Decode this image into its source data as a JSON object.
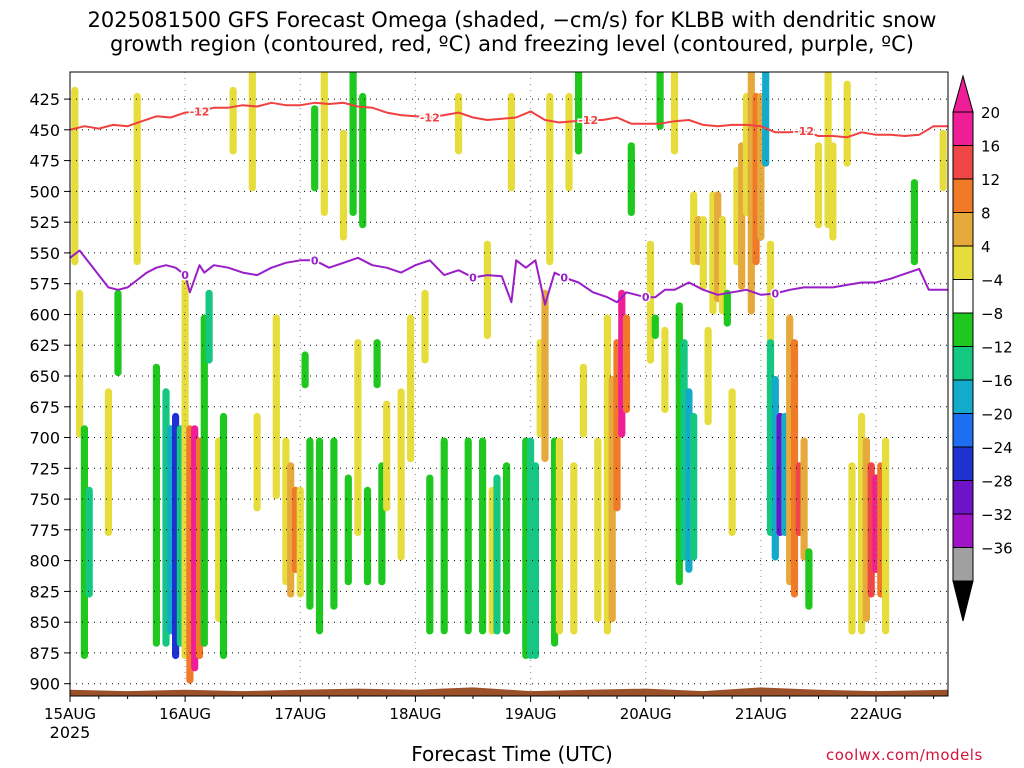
{
  "colors": {
    "dgz_contour": "#f04040",
    "freezing_contour": "#9a1ec8",
    "terrain": "#9a5028",
    "credit": "#d2143c"
  },
  "chart_data": {
    "type": "heatmap",
    "title": "2025081500 GFS Forecast Omega (shaded, −cm/s) for KLBB with dendritic snow",
    "subtitle": "growth region (contoured, red, ºC) and freezing level (contoured, purple, ºC)",
    "xlabel": "Forecast Time (UTC)",
    "year_label": "2025",
    "x_ticks": [
      "15AUG",
      "16AUG",
      "17AUG",
      "18AUG",
      "19AUG",
      "20AUG",
      "21AUG",
      "22AUG"
    ],
    "xlim_hours": [
      0,
      183
    ],
    "y_ticks": [
      425,
      450,
      475,
      500,
      525,
      550,
      575,
      600,
      625,
      650,
      675,
      700,
      725,
      750,
      775,
      800,
      825,
      850,
      875,
      900
    ],
    "ylim_mb": [
      910,
      403
    ],
    "grid": true,
    "colorbar": {
      "labels": [
        "20",
        "16",
        "12",
        "8",
        "4",
        "−4",
        "−8",
        "−12",
        "−16",
        "−20",
        "−24",
        "−28",
        "−32",
        "−36"
      ],
      "colors": [
        "#f01e96",
        "#f04646",
        "#f07a28",
        "#e6aa3c",
        "#e6dc3c",
        "#ffffff",
        "#1ec81e",
        "#14c882",
        "#14aacc",
        "#1e6ef0",
        "#1e32d2",
        "#6e14c8",
        "#a014c8",
        "#a0a0a0"
      ]
    },
    "contour_labels": {
      "dgz": "-12",
      "freezing": "0"
    },
    "dgz_level_mb": [
      [
        0,
        450
      ],
      [
        3,
        447
      ],
      [
        6,
        449
      ],
      [
        9,
        446
      ],
      [
        12,
        447
      ],
      [
        15,
        443
      ],
      [
        18,
        439
      ],
      [
        21,
        440
      ],
      [
        24,
        436
      ],
      [
        27,
        435
      ],
      [
        30,
        432
      ],
      [
        33,
        432
      ],
      [
        36,
        430
      ],
      [
        39,
        431
      ],
      [
        42,
        428
      ],
      [
        45,
        430
      ],
      [
        48,
        430
      ],
      [
        51,
        428
      ],
      [
        54,
        429
      ],
      [
        57,
        428
      ],
      [
        60,
        431
      ],
      [
        63,
        432
      ],
      [
        66,
        436
      ],
      [
        69,
        438
      ],
      [
        72,
        439
      ],
      [
        75,
        440
      ],
      [
        78,
        438
      ],
      [
        81,
        436
      ],
      [
        84,
        440
      ],
      [
        87,
        442
      ],
      [
        90,
        441
      ],
      [
        93,
        440
      ],
      [
        96,
        435
      ],
      [
        99,
        442
      ],
      [
        102,
        444
      ],
      [
        105,
        443
      ],
      [
        108,
        442
      ],
      [
        111,
        442
      ],
      [
        114,
        440
      ],
      [
        117,
        445
      ],
      [
        120,
        445
      ],
      [
        123,
        445
      ],
      [
        126,
        443
      ],
      [
        129,
        442
      ],
      [
        132,
        446
      ],
      [
        135,
        447
      ],
      [
        138,
        446
      ],
      [
        141,
        446
      ],
      [
        144,
        447
      ],
      [
        147,
        452
      ],
      [
        150,
        452
      ],
      [
        153,
        451
      ],
      [
        156,
        455
      ],
      [
        159,
        455
      ],
      [
        162,
        456
      ],
      [
        165,
        452
      ],
      [
        168,
        454
      ],
      [
        171,
        454
      ],
      [
        174,
        455
      ],
      [
        177,
        454
      ],
      [
        180,
        447
      ],
      [
        183,
        447
      ]
    ],
    "freezing_level_mb": [
      [
        0,
        554
      ],
      [
        2,
        548
      ],
      [
        4,
        558
      ],
      [
        6,
        568
      ],
      [
        8,
        578
      ],
      [
        10,
        580
      ],
      [
        12,
        578
      ],
      [
        14,
        572
      ],
      [
        16,
        566
      ],
      [
        18,
        562
      ],
      [
        20,
        560
      ],
      [
        22,
        562
      ],
      [
        24,
        568
      ],
      [
        25,
        582
      ],
      [
        27,
        560
      ],
      [
        28,
        566
      ],
      [
        30,
        560
      ],
      [
        33,
        562
      ],
      [
        36,
        566
      ],
      [
        39,
        568
      ],
      [
        42,
        562
      ],
      [
        45,
        558
      ],
      [
        48,
        556
      ],
      [
        51,
        556
      ],
      [
        54,
        562
      ],
      [
        57,
        558
      ],
      [
        60,
        554
      ],
      [
        63,
        560
      ],
      [
        66,
        562
      ],
      [
        69,
        566
      ],
      [
        72,
        560
      ],
      [
        75,
        556
      ],
      [
        78,
        568
      ],
      [
        81,
        564
      ],
      [
        84,
        570
      ],
      [
        87,
        568
      ],
      [
        90,
        569
      ],
      [
        92,
        590
      ],
      [
        93,
        556
      ],
      [
        95,
        562
      ],
      [
        97,
        556
      ],
      [
        99,
        592
      ],
      [
        101,
        566
      ],
      [
        103,
        570
      ],
      [
        106,
        574
      ],
      [
        109,
        582
      ],
      [
        112,
        586
      ],
      [
        114,
        590
      ],
      [
        116,
        582
      ],
      [
        118,
        584
      ],
      [
        120,
        586
      ],
      [
        122,
        586
      ],
      [
        124,
        580
      ],
      [
        126,
        580
      ],
      [
        129,
        574
      ],
      [
        132,
        580
      ],
      [
        135,
        584
      ],
      [
        138,
        582
      ],
      [
        141,
        580
      ],
      [
        144,
        584
      ],
      [
        147,
        583
      ],
      [
        150,
        580
      ],
      [
        153,
        578
      ],
      [
        156,
        578
      ],
      [
        159,
        578
      ],
      [
        162,
        576
      ],
      [
        165,
        574
      ],
      [
        168,
        574
      ],
      [
        171,
        571
      ],
      [
        174,
        567
      ],
      [
        177,
        563
      ],
      [
        179,
        580
      ],
      [
        183,
        580
      ]
    ],
    "terrain_surface_mb": [
      [
        0,
        905
      ],
      [
        12,
        906
      ],
      [
        24,
        905
      ],
      [
        36,
        906
      ],
      [
        48,
        905
      ],
      [
        60,
        904
      ],
      [
        72,
        905
      ],
      [
        84,
        903
      ],
      [
        96,
        906
      ],
      [
        108,
        905
      ],
      [
        120,
        904
      ],
      [
        132,
        906
      ],
      [
        144,
        903
      ],
      [
        156,
        905
      ],
      [
        168,
        906
      ],
      [
        183,
        905
      ]
    ],
    "omega_cells": [
      {
        "t": 1,
        "p0": 415,
        "p1": 560,
        "v": 4
      },
      {
        "t": 2,
        "p0": 580,
        "p1": 700,
        "v": 4
      },
      {
        "t": 3,
        "p0": 690,
        "p1": 880,
        "v": -6
      },
      {
        "t": 4,
        "p0": 740,
        "p1": 830,
        "v": -10
      },
      {
        "t": 8,
        "p0": 660,
        "p1": 780,
        "v": 4
      },
      {
        "t": 10,
        "p0": 580,
        "p1": 650,
        "v": -6
      },
      {
        "t": 14,
        "p0": 420,
        "p1": 560,
        "v": 4
      },
      {
        "t": 18,
        "p0": 640,
        "p1": 870,
        "v": -6
      },
      {
        "t": 20,
        "p0": 660,
        "p1": 870,
        "v": -8
      },
      {
        "t": 21,
        "p0": 690,
        "p1": 860,
        "v": -14
      },
      {
        "t": 22,
        "p0": 680,
        "p1": 880,
        "v": -20
      },
      {
        "t": 23,
        "p0": 690,
        "p1": 870,
        "v": -10
      },
      {
        "t": 24,
        "p0": 570,
        "p1": 880,
        "v": 6
      },
      {
        "t": 25,
        "p0": 690,
        "p1": 900,
        "v": 14
      },
      {
        "t": 26,
        "p0": 690,
        "p1": 890,
        "v": 22
      },
      {
        "t": 27,
        "p0": 700,
        "p1": 880,
        "v": 14
      },
      {
        "t": 28,
        "p0": 600,
        "p1": 870,
        "v": -6
      },
      {
        "t": 29,
        "p0": 580,
        "p1": 640,
        "v": -10
      },
      {
        "t": 31,
        "p0": 700,
        "p1": 850,
        "v": 4
      },
      {
        "t": 32,
        "p0": 680,
        "p1": 880,
        "v": -6
      },
      {
        "t": 34,
        "p0": 415,
        "p1": 470,
        "v": 4
      },
      {
        "t": 38,
        "p0": 400,
        "p1": 500,
        "v": 4
      },
      {
        "t": 39,
        "p0": 680,
        "p1": 760,
        "v": 4
      },
      {
        "t": 43,
        "p0": 600,
        "p1": 750,
        "v": 4
      },
      {
        "t": 45,
        "p0": 700,
        "p1": 820,
        "v": 6
      },
      {
        "t": 46,
        "p0": 720,
        "p1": 830,
        "v": 10
      },
      {
        "t": 47,
        "p0": 740,
        "p1": 810,
        "v": 12
      },
      {
        "t": 48,
        "p0": 740,
        "p1": 830,
        "v": 6
      },
      {
        "t": 49,
        "p0": 630,
        "p1": 660,
        "v": -6
      },
      {
        "t": 50,
        "p0": 700,
        "p1": 840,
        "v": -6
      },
      {
        "t": 51,
        "p0": 430,
        "p1": 500,
        "v": -6
      },
      {
        "t": 52,
        "p0": 700,
        "p1": 860,
        "v": -6
      },
      {
        "t": 53,
        "p0": 400,
        "p1": 520,
        "v": 4
      },
      {
        "t": 55,
        "p0": 700,
        "p1": 840,
        "v": -6
      },
      {
        "t": 57,
        "p0": 450,
        "p1": 540,
        "v": 4
      },
      {
        "t": 58,
        "p0": 730,
        "p1": 820,
        "v": -6
      },
      {
        "t": 59,
        "p0": 400,
        "p1": 520,
        "v": -6
      },
      {
        "t": 60,
        "p0": 620,
        "p1": 780,
        "v": 4
      },
      {
        "t": 61,
        "p0": 420,
        "p1": 530,
        "v": -6
      },
      {
        "t": 62,
        "p0": 740,
        "p1": 820,
        "v": -6
      },
      {
        "t": 64,
        "p0": 620,
        "p1": 660,
        "v": -6
      },
      {
        "t": 65,
        "p0": 720,
        "p1": 820,
        "v": -6
      },
      {
        "t": 66,
        "p0": 670,
        "p1": 760,
        "v": 4
      },
      {
        "t": 69,
        "p0": 660,
        "p1": 800,
        "v": 4
      },
      {
        "t": 71,
        "p0": 600,
        "p1": 720,
        "v": 4
      },
      {
        "t": 74,
        "p0": 580,
        "p1": 640,
        "v": 4
      },
      {
        "t": 75,
        "p0": 730,
        "p1": 860,
        "v": -6
      },
      {
        "t": 78,
        "p0": 700,
        "p1": 860,
        "v": -6
      },
      {
        "t": 81,
        "p0": 420,
        "p1": 470,
        "v": 4
      },
      {
        "t": 83,
        "p0": 700,
        "p1": 860,
        "v": -6
      },
      {
        "t": 86,
        "p0": 700,
        "p1": 860,
        "v": -6
      },
      {
        "t": 87,
        "p0": 540,
        "p1": 620,
        "v": 4
      },
      {
        "t": 88,
        "p0": 740,
        "p1": 860,
        "v": 4
      },
      {
        "t": 89,
        "p0": 730,
        "p1": 860,
        "v": -8
      },
      {
        "t": 91,
        "p0": 720,
        "p1": 860,
        "v": -6
      },
      {
        "t": 92,
        "p0": 420,
        "p1": 500,
        "v": 4
      },
      {
        "t": 95,
        "p0": 700,
        "p1": 880,
        "v": -6
      },
      {
        "t": 96,
        "p0": 700,
        "p1": 880,
        "v": -10
      },
      {
        "t": 97,
        "p0": 720,
        "p1": 880,
        "v": -8
      },
      {
        "t": 98,
        "p0": 620,
        "p1": 700,
        "v": 6
      },
      {
        "t": 99,
        "p0": 580,
        "p1": 720,
        "v": 10
      },
      {
        "t": 100,
        "p0": 420,
        "p1": 560,
        "v": 4
      },
      {
        "t": 101,
        "p0": 700,
        "p1": 870,
        "v": -6
      },
      {
        "t": 102,
        "p0": 700,
        "p1": 860,
        "v": 4
      },
      {
        "t": 104,
        "p0": 420,
        "p1": 500,
        "v": 4
      },
      {
        "t": 105,
        "p0": 720,
        "p1": 860,
        "v": 4
      },
      {
        "t": 106,
        "p0": 400,
        "p1": 470,
        "v": -6
      },
      {
        "t": 107,
        "p0": 640,
        "p1": 700,
        "v": 4
      },
      {
        "t": 110,
        "p0": 700,
        "p1": 850,
        "v": 4
      },
      {
        "t": 112,
        "p0": 600,
        "p1": 860,
        "v": 6
      },
      {
        "t": 113,
        "p0": 650,
        "p1": 850,
        "v": 10
      },
      {
        "t": 114,
        "p0": 620,
        "p1": 760,
        "v": 14
      },
      {
        "t": 115,
        "p0": 580,
        "p1": 700,
        "v": 20
      },
      {
        "t": 116,
        "p0": 600,
        "p1": 680,
        "v": 12
      },
      {
        "t": 117,
        "p0": 460,
        "p1": 520,
        "v": -6
      },
      {
        "t": 121,
        "p0": 540,
        "p1": 640,
        "v": 4
      },
      {
        "t": 122,
        "p0": 600,
        "p1": 620,
        "v": -6
      },
      {
        "t": 123,
        "p0": 400,
        "p1": 450,
        "v": -6
      },
      {
        "t": 124,
        "p0": 610,
        "p1": 680,
        "v": 4
      },
      {
        "t": 126,
        "p0": 400,
        "p1": 470,
        "v": 4
      },
      {
        "t": 127,
        "p0": 590,
        "p1": 820,
        "v": -6
      },
      {
        "t": 128,
        "p0": 620,
        "p1": 800,
        "v": -10
      },
      {
        "t": 129,
        "p0": 660,
        "p1": 810,
        "v": -12
      },
      {
        "t": 130,
        "p0": 680,
        "p1": 800,
        "v": -8
      },
      {
        "t": 130,
        "p0": 500,
        "p1": 560,
        "v": 4
      },
      {
        "t": 131,
        "p0": 520,
        "p1": 560,
        "v": 10
      },
      {
        "t": 132,
        "p0": 520,
        "p1": 580,
        "v": 6
      },
      {
        "t": 133,
        "p0": 610,
        "p1": 690,
        "v": 4
      },
      {
        "t": 134,
        "p0": 500,
        "p1": 600,
        "v": 6
      },
      {
        "t": 135,
        "p0": 500,
        "p1": 590,
        "v": 10
      },
      {
        "t": 136,
        "p0": 520,
        "p1": 600,
        "v": 6
      },
      {
        "t": 137,
        "p0": 580,
        "p1": 610,
        "v": -6
      },
      {
        "t": 138,
        "p0": 660,
        "p1": 780,
        "v": 4
      },
      {
        "t": 139,
        "p0": 480,
        "p1": 560,
        "v": 4
      },
      {
        "t": 140,
        "p0": 460,
        "p1": 580,
        "v": 8
      },
      {
        "t": 141,
        "p0": 420,
        "p1": 520,
        "v": 4
      },
      {
        "t": 142,
        "p0": 400,
        "p1": 600,
        "v": 10
      },
      {
        "t": 143,
        "p0": 420,
        "p1": 560,
        "v": 14
      },
      {
        "t": 144,
        "p0": 420,
        "p1": 540,
        "v": 10
      },
      {
        "t": 145,
        "p0": 400,
        "p1": 480,
        "v": -12
      },
      {
        "t": 146,
        "p0": 540,
        "p1": 680,
        "v": 6
      },
      {
        "t": 146,
        "p0": 620,
        "p1": 780,
        "v": -8
      },
      {
        "t": 147,
        "p0": 650,
        "p1": 800,
        "v": -14
      },
      {
        "t": 148,
        "p0": 680,
        "p1": 780,
        "v": -24
      },
      {
        "t": 149,
        "p0": 680,
        "p1": 780,
        "v": -12
      },
      {
        "t": 150,
        "p0": 600,
        "p1": 820,
        "v": 10
      },
      {
        "t": 151,
        "p0": 620,
        "p1": 830,
        "v": 14
      },
      {
        "t": 152,
        "p0": 720,
        "p1": 780,
        "v": 16
      },
      {
        "t": 153,
        "p0": 700,
        "p1": 800,
        "v": 8
      },
      {
        "t": 154,
        "p0": 790,
        "p1": 840,
        "v": -6
      },
      {
        "t": 156,
        "p0": 460,
        "p1": 530,
        "v": 4
      },
      {
        "t": 158,
        "p0": 400,
        "p1": 530,
        "v": 4
      },
      {
        "t": 159,
        "p0": 460,
        "p1": 540,
        "v": 6
      },
      {
        "t": 162,
        "p0": 410,
        "p1": 480,
        "v": 4
      },
      {
        "t": 163,
        "p0": 720,
        "p1": 860,
        "v": 4
      },
      {
        "t": 165,
        "p0": 680,
        "p1": 860,
        "v": 6
      },
      {
        "t": 166,
        "p0": 700,
        "p1": 850,
        "v": 10
      },
      {
        "t": 167,
        "p0": 720,
        "p1": 830,
        "v": 16
      },
      {
        "t": 168,
        "p0": 730,
        "p1": 810,
        "v": 20
      },
      {
        "t": 169,
        "p0": 720,
        "p1": 830,
        "v": 12
      },
      {
        "t": 170,
        "p0": 700,
        "p1": 860,
        "v": 4
      },
      {
        "t": 176,
        "p0": 490,
        "p1": 560,
        "v": -6
      },
      {
        "t": 182,
        "p0": 450,
        "p1": 500,
        "v": 4
      }
    ]
  }
}
